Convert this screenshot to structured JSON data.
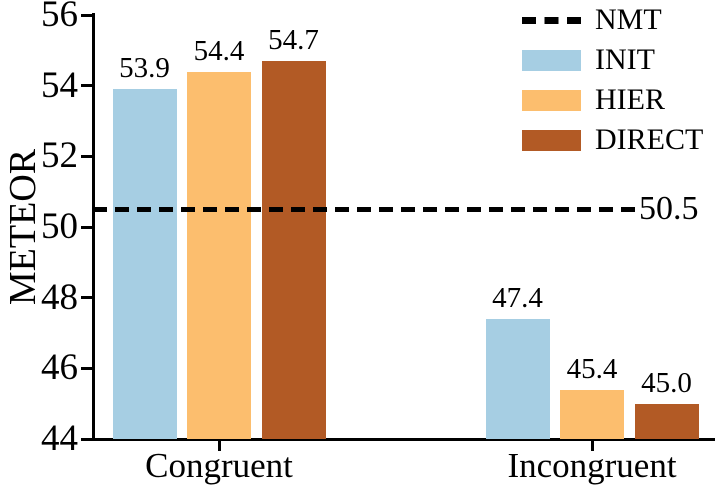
{
  "figure": {
    "background_color": "#ffffff",
    "axis_color": "#000000"
  },
  "chart_data": {
    "type": "bar",
    "title": "",
    "xlabel": "",
    "ylabel": "METEOR",
    "categories": [
      "Congruent",
      "Incongruent"
    ],
    "series": [
      {
        "name": "INIT",
        "color": "#a6cee3",
        "values": [
          53.9,
          47.4
        ]
      },
      {
        "name": "HIER",
        "color": "#fcbe6e",
        "values": [
          54.4,
          45.4
        ]
      },
      {
        "name": "DIRECT",
        "color": "#b25a25",
        "values": [
          54.7,
          45.0
        ]
      }
    ],
    "bar_value_labels": {
      "shown": true,
      "congruent": [
        "53.9",
        "54.4",
        "54.7"
      ],
      "incongruent": [
        "47.4",
        "45.4",
        "45.0"
      ]
    },
    "reference_line": {
      "name": "NMT",
      "value": 50.5,
      "label": "50.5",
      "style": "dashed",
      "color": "#000000"
    },
    "ylim": [
      44,
      56
    ],
    "yticks": [
      56,
      54,
      52,
      50,
      48,
      46,
      44
    ],
    "grid": false,
    "legend": {
      "position": "upper right",
      "entries": [
        "NMT",
        "INIT",
        "HIER",
        "DIRECT"
      ]
    }
  }
}
